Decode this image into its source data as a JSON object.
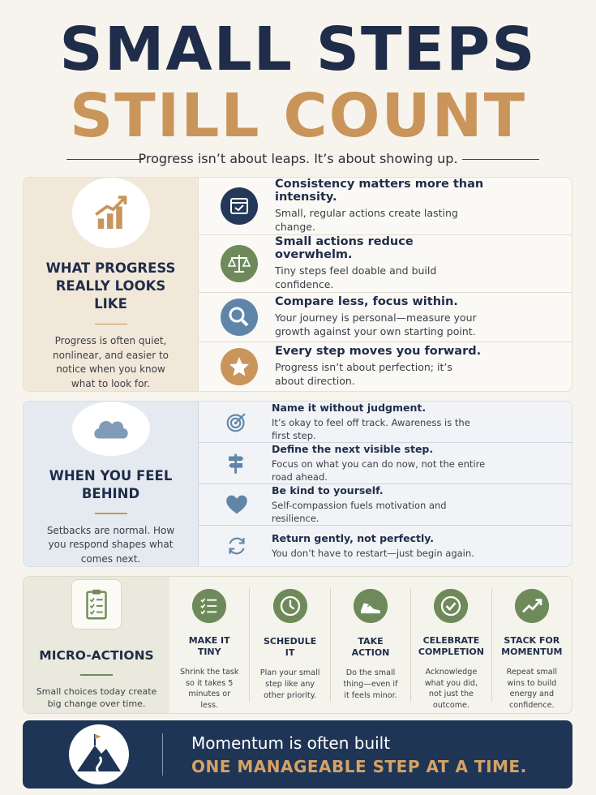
{
  "header": {
    "title_line1": "SMALL STEPS",
    "title_line2": "STILL COUNT",
    "subtitle": "Progress isn’t about leaps. It’s about showing up."
  },
  "sections": [
    {
      "heading": "WHAT PROGRESS REALLY LOOKS LIKE",
      "description": "Progress is often quiet, nonlinear, and easier to notice when you know what to look for.",
      "items": [
        {
          "title": "Consistency matters more than intensity.",
          "text": "Small, regular actions create lasting change."
        },
        {
          "title": "Small actions reduce overwhelm.",
          "text": "Tiny steps feel doable and build confidence."
        },
        {
          "title": "Compare less, focus within.",
          "text": "Your journey is personal—measure your growth against your own starting point."
        },
        {
          "title": "Every step moves you forward.",
          "text": "Progress isn’t about perfection; it’s about direction."
        }
      ]
    },
    {
      "heading": "WHEN YOU FEEL BEHIND",
      "description": "Setbacks are normal. How you respond shapes what comes next.",
      "items": [
        {
          "title": "Name it without judgment.",
          "text": "It’s okay to feel off track. Awareness is the first step."
        },
        {
          "title": "Define the next visible step.",
          "text": "Focus on what you can do now, not the entire road ahead."
        },
        {
          "title": "Be kind to yourself.",
          "text": "Self-compassion fuels motivation and resilience."
        },
        {
          "title": "Return gently, not perfectly.",
          "text": "You don’t have to restart—just begin again."
        }
      ]
    }
  ],
  "micro_actions": {
    "heading": "MICRO-ACTIONS",
    "description": "Small choices today create big change over time.",
    "actions": [
      {
        "title": "MAKE IT TINY",
        "text": "Shrink the task so it takes 5 minutes or less."
      },
      {
        "title": "SCHEDULE IT",
        "text": "Plan your small step like any other priority."
      },
      {
        "title": "TAKE ACTION",
        "text": "Do the small thing—even if it feels minor."
      },
      {
        "title": "CELEBRATE COMPLETION",
        "text": "Acknowledge what you did, not just the outcome."
      },
      {
        "title": "STACK FOR MOMENTUM",
        "text": "Repeat small wins to build energy and confidence."
      }
    ]
  },
  "footer": {
    "line1": "Momentum is often built",
    "line2": "ONE MANAGEABLE STEP AT A TIME."
  }
}
